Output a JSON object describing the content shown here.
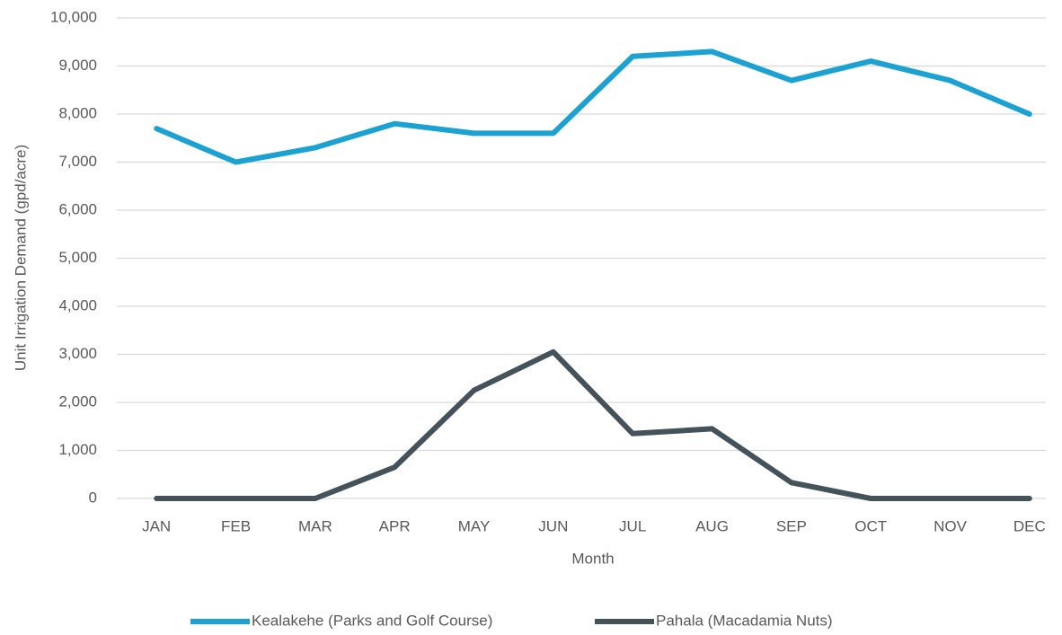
{
  "chart_data": {
    "type": "line",
    "title": "",
    "xlabel": "Month",
    "ylabel": "Unit Irrigation Demand (gpd/acre)",
    "categories": [
      "JAN",
      "FEB",
      "MAR",
      "APR",
      "MAY",
      "JUN",
      "JUL",
      "AUG",
      "SEP",
      "OCT",
      "NOV",
      "DEC"
    ],
    "ylim": [
      0,
      10000
    ],
    "yticks": [
      "0",
      "1,000",
      "2,000",
      "3,000",
      "4,000",
      "5,000",
      "6,000",
      "7,000",
      "8,000",
      "9,000",
      "10,000"
    ],
    "grid": true,
    "legend_position": "bottom",
    "series": [
      {
        "name": "Kealakehe (Parks and Golf Course)",
        "color": "#1ba1d2",
        "values": [
          7700,
          7000,
          7300,
          7800,
          7600,
          7600,
          9200,
          9300,
          8700,
          9100,
          8700,
          8000
        ]
      },
      {
        "name": "Pahala (Macadamia Nuts)",
        "color": "#44525a",
        "values": [
          0,
          0,
          0,
          650,
          2250,
          3050,
          1350,
          1450,
          330,
          0,
          0,
          0
        ]
      }
    ]
  }
}
